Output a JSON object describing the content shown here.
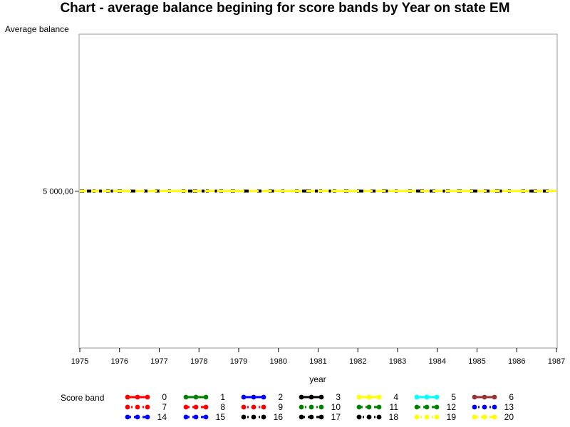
{
  "chart_data": {
    "type": "line",
    "title": "Chart - average balance begining for score bands by Year on state EM",
    "ylabel": "Average balance",
    "xlabel": "year",
    "xlim": [
      1975,
      1987
    ],
    "ylim": [
      0,
      10000
    ],
    "xticks": [
      1975,
      1976,
      1977,
      1978,
      1979,
      1980,
      1981,
      1982,
      1983,
      1984,
      1985,
      1986,
      1987
    ],
    "yticks": [
      {
        "value": 5000,
        "label": "5 000,00"
      }
    ],
    "legend_title": "Score band",
    "legend_placement": "bottom",
    "series": [
      {
        "name": "0",
        "color": "#ff0000",
        "style": "solid"
      },
      {
        "name": "1",
        "color": "#008000",
        "style": "solid"
      },
      {
        "name": "2",
        "color": "#0000ff",
        "style": "solid"
      },
      {
        "name": "3",
        "color": "#000000",
        "style": "solid"
      },
      {
        "name": "4",
        "color": "#ffff00",
        "style": "solid"
      },
      {
        "name": "5",
        "color": "#00ffff",
        "style": "solid"
      },
      {
        "name": "6",
        "color": "#993333",
        "style": "solid"
      },
      {
        "name": "7",
        "color": "#ff0000",
        "style": "dotted"
      },
      {
        "name": "8",
        "color": "#ff0000",
        "style": "dashed"
      },
      {
        "name": "9",
        "color": "#ff0000",
        "style": "dotted"
      },
      {
        "name": "10",
        "color": "#008000",
        "style": "dotted"
      },
      {
        "name": "11",
        "color": "#008000",
        "style": "dashed"
      },
      {
        "name": "12",
        "color": "#008000",
        "style": "dashed"
      },
      {
        "name": "13",
        "color": "#0000ff",
        "style": "dotted"
      },
      {
        "name": "14",
        "color": "#0000ff",
        "style": "dashed"
      },
      {
        "name": "15",
        "color": "#0000ff",
        "style": "dashed"
      },
      {
        "name": "16",
        "color": "#000000",
        "style": "dotted"
      },
      {
        "name": "17",
        "color": "#000000",
        "style": "dashed"
      },
      {
        "name": "18",
        "color": "#000000",
        "style": "dotted"
      },
      {
        "name": "19",
        "color": "#ffff00",
        "style": "dotted"
      },
      {
        "name": "20",
        "color": "#ffff00",
        "style": "dashed"
      }
    ],
    "data_points": [
      {
        "x": 1975,
        "y": 5000
      },
      {
        "x": 1987,
        "y": 5000
      }
    ],
    "grid": false
  }
}
